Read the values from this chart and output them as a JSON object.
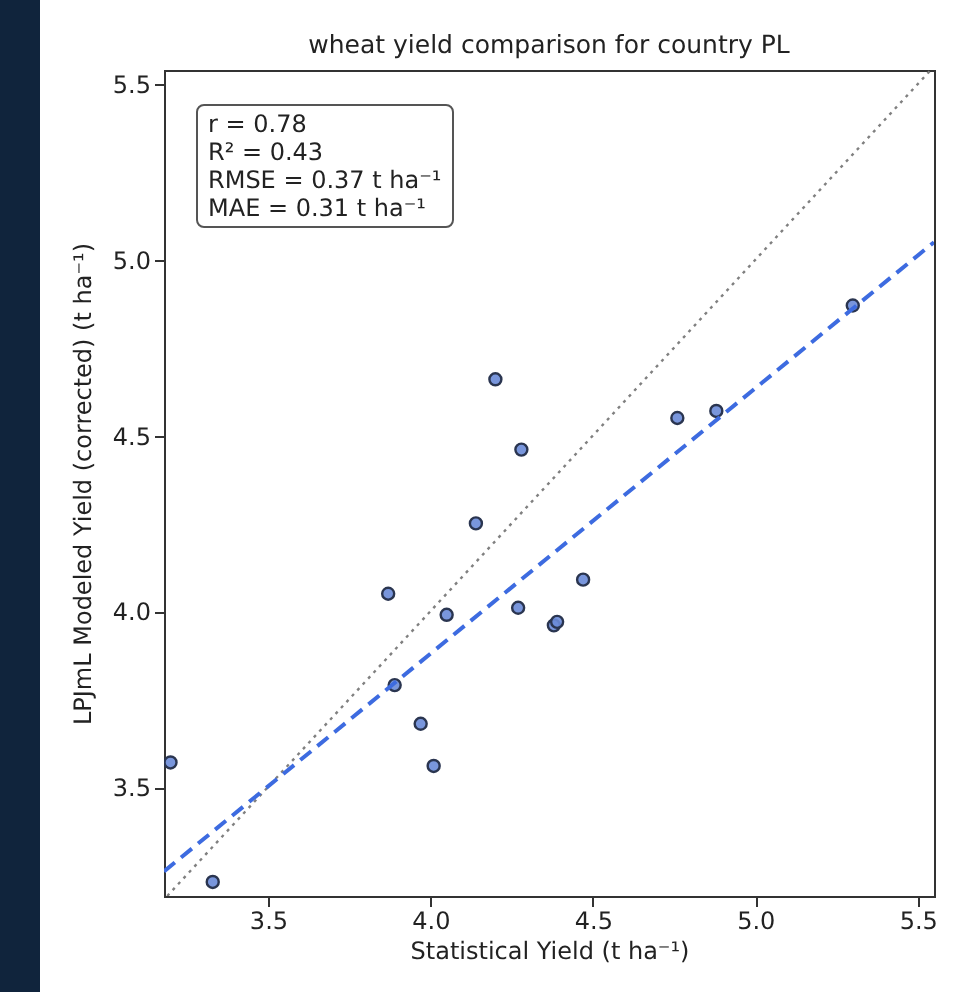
{
  "chart_data": {
    "type": "scatter",
    "title": "wheat yield comparison for country PL",
    "xlabel": "Statistical Yield (t ha⁻¹)",
    "ylabel": "LPJmL Modeled Yield (corrected) (t ha⁻¹)",
    "annotations": [
      "r = 0.78",
      "R² = 0.43",
      "RMSE = 0.37 t ha⁻¹",
      "MAE = 0.31 t ha⁻¹"
    ],
    "xlim": [
      3.18,
      5.55
    ],
    "ylim": [
      3.19,
      5.54
    ],
    "xticks": [
      3.5,
      {
        "value": 4,
        "label": "4.0"
      },
      4.5,
      {
        "value": 5,
        "label": "5.0"
      },
      5.5
    ],
    "yticks": [
      3.5,
      {
        "value": 4,
        "label": "4.0"
      },
      4.5,
      {
        "value": 5,
        "label": "5.0"
      },
      5.5
    ],
    "grid": false,
    "series": [
      {
        "color": "#6a8bd8",
        "marker": "circle",
        "x": [
          4.2,
          4.28,
          4.76,
          4.88,
          5.3,
          4.14,
          3.87,
          4.05,
          4.27,
          4.47,
          4.38,
          4.39,
          3.89,
          3.97,
          4.01,
          3.2,
          3.33
        ],
        "values": [
          4.66,
          4.46,
          4.55,
          4.57,
          4.87,
          4.25,
          4.05,
          3.99,
          4.01,
          4.09,
          3.96,
          3.97,
          3.79,
          3.68,
          3.56,
          3.57,
          3.23
        ]
      },
      {
        "type": "line",
        "color": "#808080",
        "line_style": "dotted",
        "x": [
          3.19,
          5.54
        ],
        "values": [
          3.19,
          5.54
        ]
      },
      {
        "type": "line",
        "color": "#3d6be0",
        "line_style": "dashed",
        "x": [
          3.18,
          5.55
        ],
        "values": [
          3.26,
          5.05
        ]
      }
    ]
  }
}
